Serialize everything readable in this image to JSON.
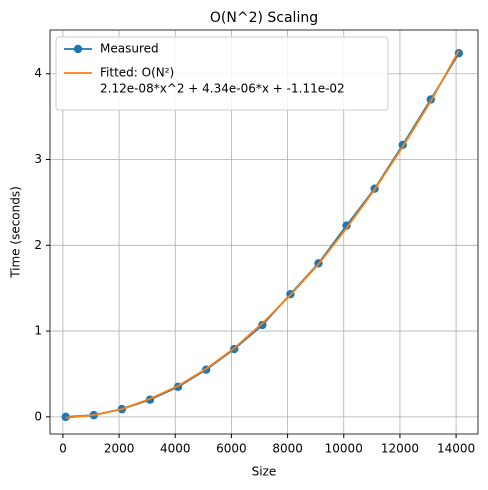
{
  "chart_data": {
    "type": "line",
    "title": "O(N^2) Scaling",
    "x_label": "Size",
    "y_label": "Time (seconds)",
    "x": [
      100,
      1100,
      2100,
      3100,
      4100,
      5100,
      6100,
      7100,
      8100,
      9100,
      10100,
      11100,
      12100,
      13100,
      14100
    ],
    "series": [
      {
        "name": "Measured",
        "color": "#1f77b4",
        "marker": true,
        "values": [
          0.0,
          0.02,
          0.09,
          0.2,
          0.35,
          0.55,
          0.79,
          1.07,
          1.43,
          1.79,
          2.23,
          2.66,
          3.17,
          3.7,
          4.24
        ]
      },
      {
        "name": "Fitted: O(N²)",
        "color": "#ff7f0e",
        "marker": false,
        "values": [
          -0.01,
          0.02,
          0.09,
          0.21,
          0.36,
          0.56,
          0.8,
          1.09,
          1.42,
          1.78,
          2.2,
          2.65,
          3.15,
          3.68,
          4.27
        ]
      }
    ],
    "fit_equation": "2.12e-08*x^2 + 4.34e-06*x + -1.11e-02",
    "xlim": [
      -460,
      14780
    ],
    "ylim": [
      -0.2,
      4.51
    ],
    "xticks": [
      0,
      2000,
      4000,
      6000,
      8000,
      10000,
      12000,
      14000
    ],
    "yticks": [
      0,
      1,
      2,
      3,
      4
    ],
    "grid": true,
    "legend": "upper-left"
  }
}
